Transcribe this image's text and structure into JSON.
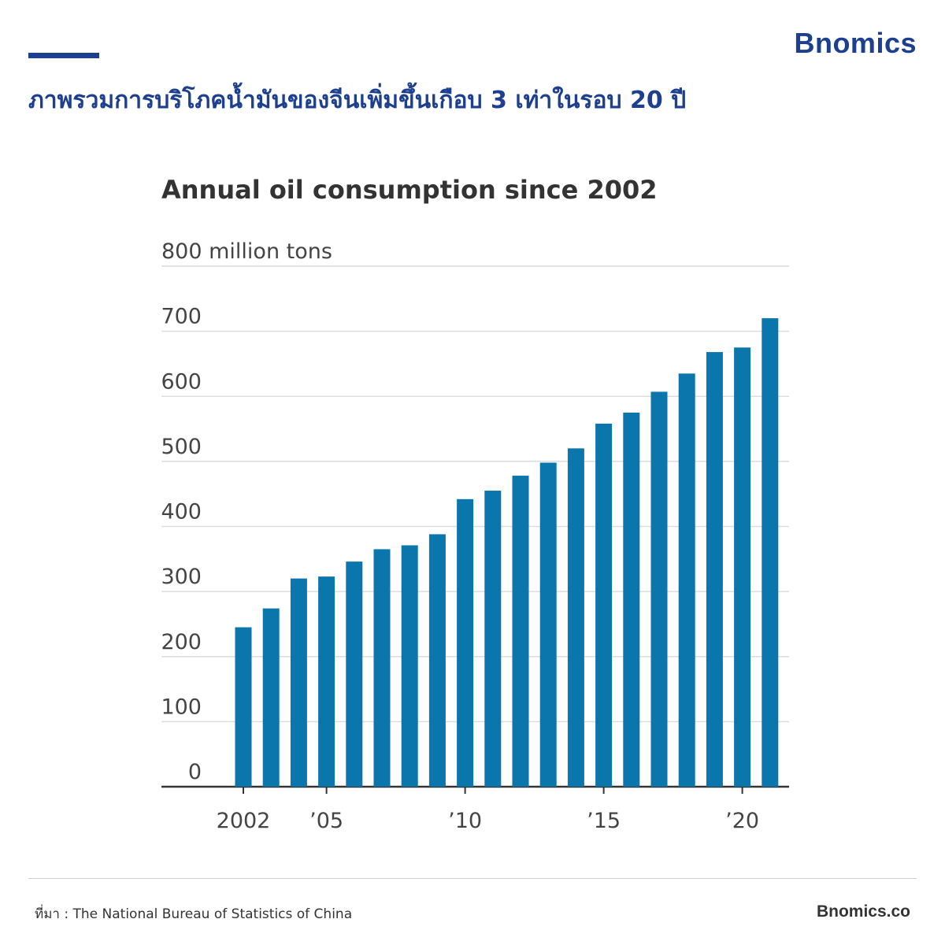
{
  "brand": {
    "logo": "Bnomics"
  },
  "headline": "ภาพรวมการบริโภคน้ำมันของจีนเพิ่มขึ้นเกือบ 3 เท่าในรอบ 20 ปี",
  "footer": {
    "source": "ที่มา : The National Bureau of Statistics of China",
    "site": "Bnomics.co"
  },
  "colors": {
    "brand": "#1c3f8f",
    "bar": "#0a76ac"
  },
  "chart_data": {
    "type": "bar",
    "title": "Annual oil consumption since 2002",
    "unit_label": "800 million tons",
    "ylim": [
      0,
      800
    ],
    "yticks": [
      0,
      100,
      200,
      300,
      400,
      500,
      600,
      700,
      800
    ],
    "ytick_labels": [
      "0",
      "100",
      "200",
      "300",
      "400",
      "500",
      "600",
      "700",
      ""
    ],
    "categories": [
      "2002",
      "2003",
      "2004",
      "2005",
      "2006",
      "2007",
      "2008",
      "2009",
      "2010",
      "2011",
      "2012",
      "2013",
      "2014",
      "2015",
      "2016",
      "2017",
      "2018",
      "2019",
      "2020",
      "2021"
    ],
    "xtick_labels": [
      {
        "index": 0,
        "label": "2002"
      },
      {
        "index": 3,
        "label": "’05"
      },
      {
        "index": 8,
        "label": "’10"
      },
      {
        "index": 13,
        "label": "’15"
      },
      {
        "index": 18,
        "label": "’20"
      }
    ],
    "values": [
      245,
      274,
      320,
      323,
      346,
      365,
      371,
      388,
      442,
      455,
      478,
      498,
      520,
      558,
      575,
      607,
      635,
      668,
      675,
      720
    ],
    "grid": true,
    "legend": "none"
  }
}
